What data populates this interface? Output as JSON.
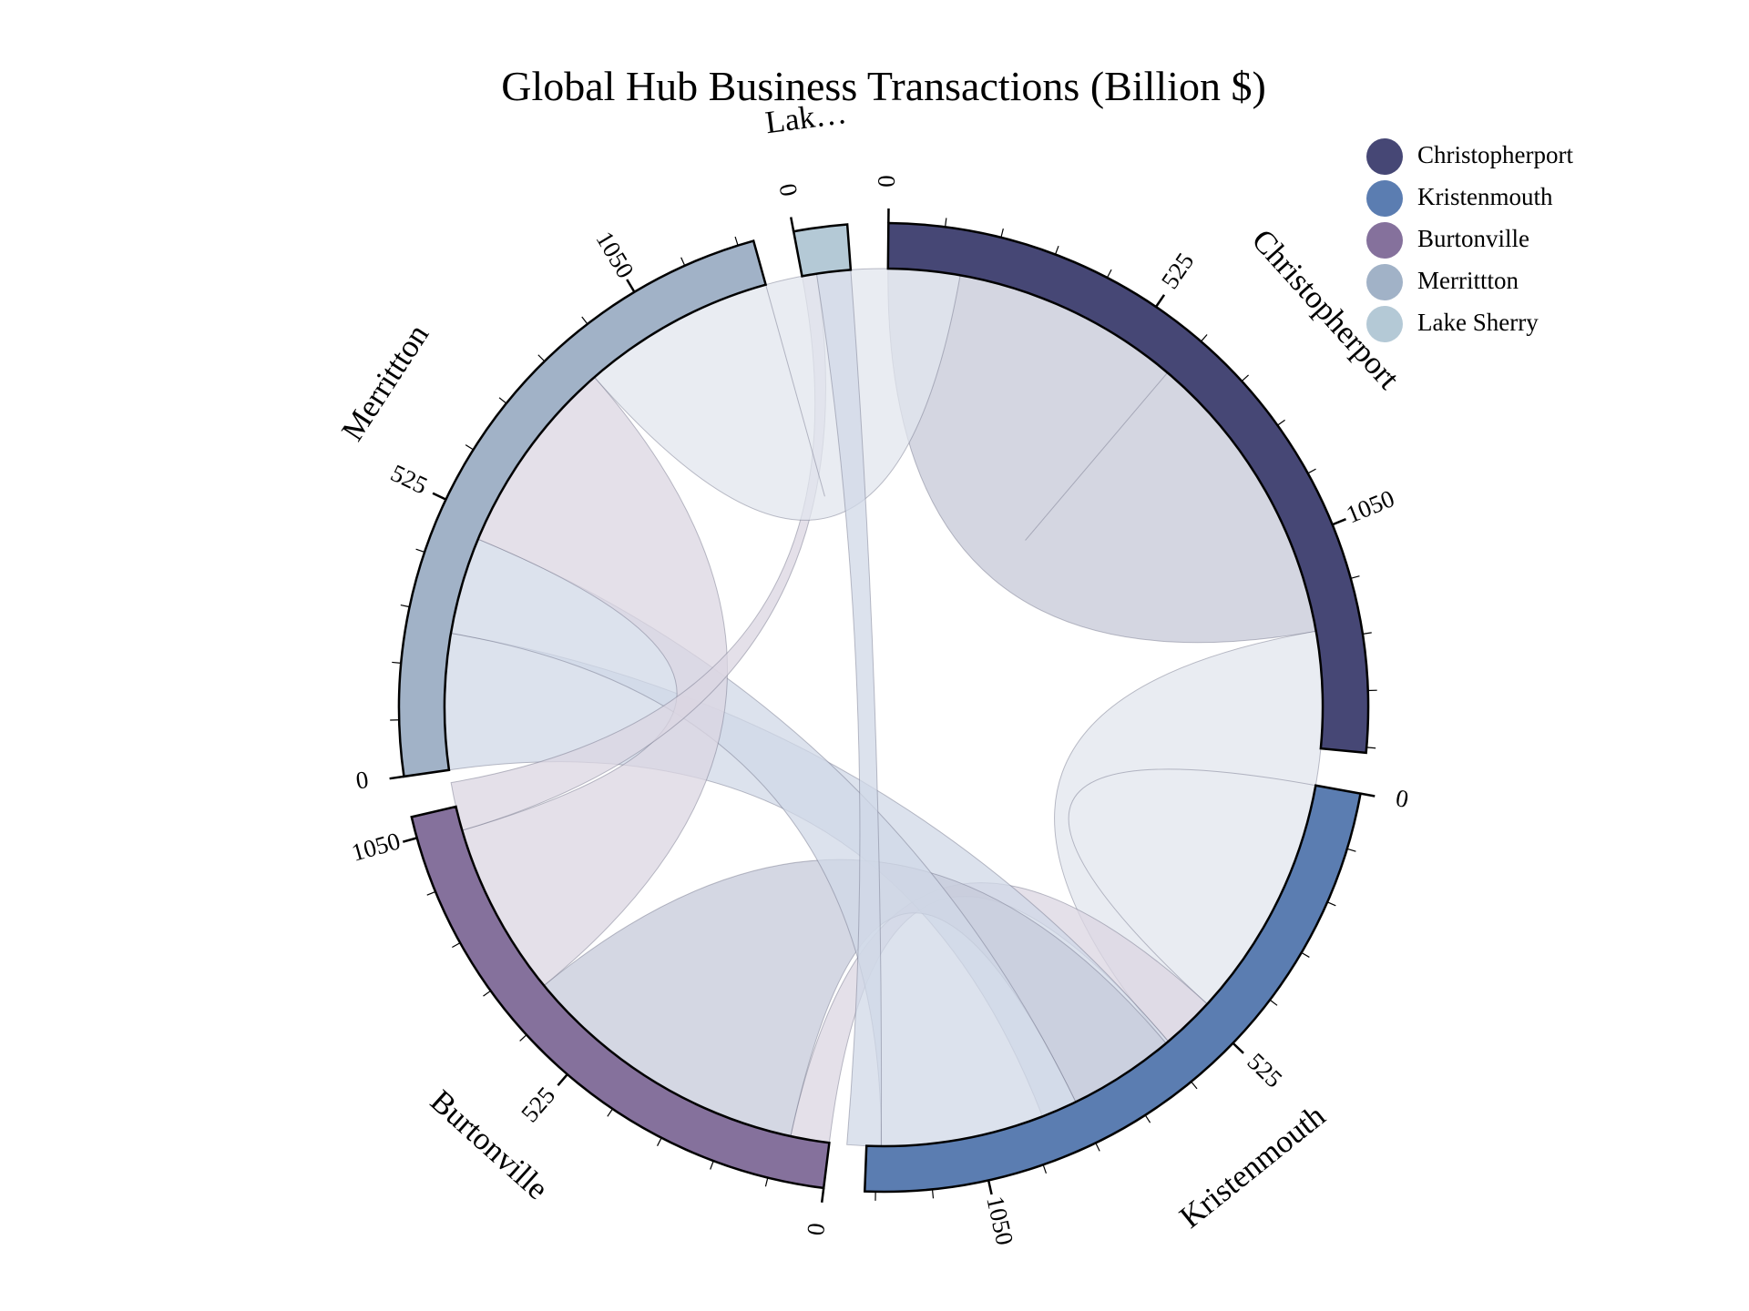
{
  "chart_data": {
    "type": "chord",
    "title": "Global Hub Business Transactions (Billion $)",
    "unit": "Billion $",
    "groups": [
      {
        "name": "Christopherport",
        "label": "Christopherport",
        "total": 1480,
        "color": "#464775"
      },
      {
        "name": "Kristenmouth",
        "label": "Kristenmouth",
        "total": 1280,
        "color": "#5b7db1"
      },
      {
        "name": "Burtonville",
        "label": "Burtonville",
        "total": 1090,
        "color": "#85719c"
      },
      {
        "name": "Merrittton",
        "label": "Merrittton",
        "total": 1290,
        "color": "#a1b2c7"
      },
      {
        "name": "Lake Sherry",
        "label": "Lak…",
        "total": 100,
        "color": "#b4c9d6"
      }
    ],
    "tick_step": 525,
    "minor_tick_step": 105,
    "chords": [
      {
        "source": "Christopherport",
        "target": "Christopherport",
        "source_value": 620,
        "target_value": 620,
        "color": "#c5c8d7"
      },
      {
        "source": "Christopherport",
        "target": "Kristenmouth",
        "source_value": 820,
        "target_value": 620,
        "color": "#e2e6ee"
      },
      {
        "source": "Christopherport",
        "target": "Burtonville",
        "source_value": 110,
        "target_value": 80,
        "color": "#dbd5e1"
      },
      {
        "source": "Christopherport",
        "target": "Merrittton",
        "source_value": 300,
        "target_value": 280,
        "color": "#d0d8e7"
      },
      {
        "source": "Kristenmouth",
        "target": "Burtonville",
        "source_value": 220,
        "target_value": 600,
        "color": "#c6c9d9"
      },
      {
        "source": "Kristenmouth",
        "target": "Merrittton",
        "source_value": 410,
        "target_value": 200,
        "color": "#d0d8e7"
      },
      {
        "source": "Burtonville",
        "target": "Merrittton",
        "source_value": 360,
        "target_value": 410,
        "color": "#dbd5e1"
      },
      {
        "source": "Burtonville",
        "target": "Lake Sherry",
        "source_value": 100,
        "target_value": 30,
        "color": "#dbd5e1"
      },
      {
        "source": "Merrittton",
        "target": "Merrittton",
        "source_value": 400,
        "target_value": 400,
        "color": "#e2e6ee"
      },
      {
        "source": "Lake Sherry",
        "target": "Kristenmouth",
        "source_value": 70,
        "target_value": 70,
        "color": "#d0d8e7"
      }
    ],
    "legend": {
      "position": "top-right",
      "entries": [
        {
          "label": "Christopherport",
          "color": "#464775"
        },
        {
          "label": "Kristenmouth",
          "color": "#5b7db1"
        },
        {
          "label": "Burtonville",
          "color": "#85719c"
        },
        {
          "label": "Merrittton",
          "color": "#a1b2c7"
        },
        {
          "label": "Lake Sherry",
          "color": "#b4c9d6"
        }
      ]
    }
  }
}
